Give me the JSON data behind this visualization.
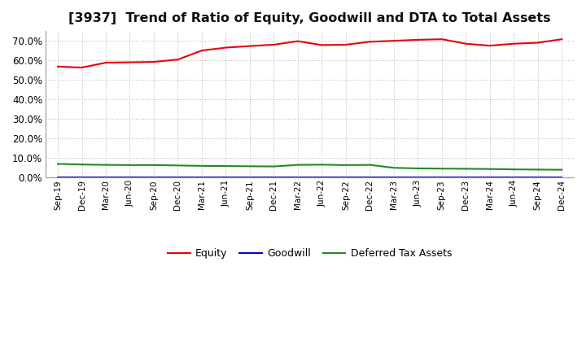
{
  "title": "[3937]  Trend of Ratio of Equity, Goodwill and DTA to Total Assets",
  "labels": [
    "Sep-19",
    "Dec-19",
    "Mar-20",
    "Jun-20",
    "Sep-20",
    "Dec-20",
    "Mar-21",
    "Jun-21",
    "Sep-21",
    "Dec-21",
    "Mar-22",
    "Jun-22",
    "Sep-22",
    "Dec-22",
    "Mar-23",
    "Jun-23",
    "Sep-23",
    "Dec-23",
    "Mar-24",
    "Jun-24",
    "Sep-24",
    "Dec-24"
  ],
  "equity": [
    56.8,
    56.3,
    58.8,
    59.0,
    59.2,
    60.4,
    65.0,
    66.5,
    67.3,
    68.0,
    69.8,
    67.8,
    68.0,
    69.5,
    70.0,
    70.5,
    70.8,
    68.5,
    67.5,
    68.5,
    69.0,
    70.8
  ],
  "goodwill": [
    0.0,
    0.0,
    0.0,
    0.0,
    0.0,
    0.0,
    0.0,
    0.0,
    0.0,
    0.0,
    0.0,
    0.0,
    0.0,
    0.0,
    0.0,
    0.0,
    0.0,
    0.0,
    0.0,
    0.0,
    0.0,
    0.0
  ],
  "dta": [
    7.0,
    6.7,
    6.5,
    6.4,
    6.4,
    6.2,
    6.0,
    5.9,
    5.8,
    5.7,
    6.5,
    6.6,
    6.4,
    6.5,
    5.0,
    4.7,
    4.6,
    4.5,
    4.4,
    4.2,
    4.1,
    4.0
  ],
  "equity_color": "#e8000d",
  "goodwill_color": "#0000cd",
  "dta_color": "#228b22",
  "bg_color": "#ffffff",
  "grid_color": "#b0b0b0",
  "ylim_max": 75,
  "yticks": [
    0,
    10,
    20,
    30,
    40,
    50,
    60,
    70
  ],
  "legend_labels": [
    "Equity",
    "Goodwill",
    "Deferred Tax Assets"
  ],
  "title_fontsize": 11.5
}
